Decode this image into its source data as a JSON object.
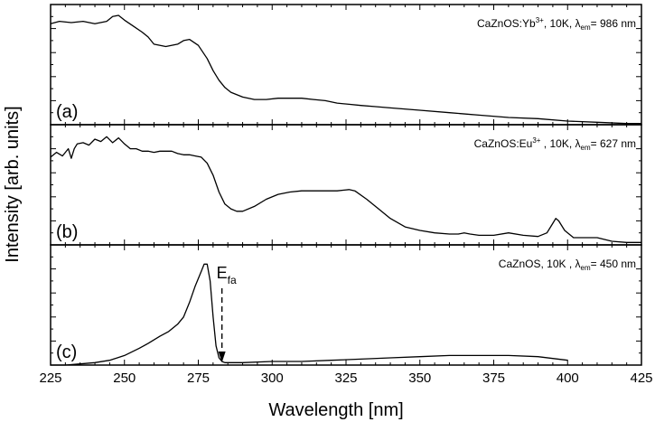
{
  "chart_data": {
    "type": "line",
    "xlabel": "Wavelength [nm]",
    "ylabel": "Intensity [arb. units]",
    "xlim": [
      225,
      425
    ],
    "xticks": [
      "225",
      "250",
      "275",
      "300",
      "325",
      "350",
      "375",
      "400",
      "425"
    ],
    "panels": [
      {
        "panel_label": "(a)",
        "legend": {
          "prefix": "CaZnOS:Yb",
          "sup": "3+",
          "mid": ", 10K, λ",
          "sub": "em",
          "suffix": "= 986 nm"
        },
        "ylim": [
          0,
          1
        ],
        "series": [
          {
            "x": [
              225,
              228,
              232,
              236,
              240,
              244,
              246,
              248,
              250,
              253,
              256,
              258,
              260,
              264,
              268,
              270,
              272,
              275,
              278,
              280,
              282,
              284,
              286,
              290,
              294,
              298,
              302,
              306,
              310,
              314,
              318,
              322,
              326,
              330,
              335,
              340,
              350,
              360,
              370,
              380,
              390,
              400,
              410,
              420,
              425
            ],
            "y": [
              0.84,
              0.86,
              0.85,
              0.86,
              0.84,
              0.86,
              0.9,
              0.91,
              0.87,
              0.82,
              0.77,
              0.73,
              0.67,
              0.65,
              0.67,
              0.7,
              0.71,
              0.66,
              0.55,
              0.45,
              0.37,
              0.31,
              0.27,
              0.23,
              0.21,
              0.21,
              0.22,
              0.22,
              0.22,
              0.21,
              0.2,
              0.18,
              0.17,
              0.16,
              0.15,
              0.14,
              0.12,
              0.1,
              0.08,
              0.06,
              0.05,
              0.03,
              0.02,
              0.01,
              0.01
            ]
          }
        ]
      },
      {
        "panel_label": "(b)",
        "legend": {
          "prefix": "CaZnOS:Eu",
          "sup": "3+",
          "mid": " , 10K, λ",
          "sub": "em",
          "suffix": "= 627 nm"
        },
        "ylim": [
          0,
          1
        ],
        "series": [
          {
            "x": [
              225,
              227,
              229,
              231,
              232,
              233,
              234,
              236,
              238,
              240,
              242,
              244,
              246,
              248,
              250,
              252,
              254,
              256,
              258,
              260,
              262,
              264,
              266,
              268,
              270,
              272,
              274,
              276,
              278,
              280,
              282,
              284,
              286,
              288,
              290,
              294,
              298,
              302,
              306,
              310,
              314,
              318,
              322,
              326,
              328,
              332,
              336,
              340,
              345,
              350,
              355,
              360,
              363,
              365,
              367,
              370,
              375,
              380,
              385,
              390,
              393,
              395,
              396,
              397,
              399,
              402,
              406,
              410,
              415,
              420,
              425
            ],
            "y": [
              0.73,
              0.77,
              0.74,
              0.8,
              0.72,
              0.8,
              0.84,
              0.85,
              0.83,
              0.88,
              0.86,
              0.9,
              0.85,
              0.89,
              0.84,
              0.8,
              0.8,
              0.78,
              0.78,
              0.77,
              0.78,
              0.78,
              0.78,
              0.76,
              0.75,
              0.75,
              0.74,
              0.73,
              0.68,
              0.58,
              0.44,
              0.34,
              0.3,
              0.28,
              0.28,
              0.32,
              0.38,
              0.42,
              0.44,
              0.45,
              0.45,
              0.45,
              0.45,
              0.46,
              0.45,
              0.38,
              0.3,
              0.22,
              0.15,
              0.12,
              0.1,
              0.09,
              0.09,
              0.1,
              0.09,
              0.08,
              0.08,
              0.1,
              0.08,
              0.07,
              0.1,
              0.18,
              0.22,
              0.2,
              0.12,
              0.06,
              0.06,
              0.06,
              0.03,
              0.02,
              0.02
            ]
          }
        ]
      },
      {
        "panel_label": "(c)",
        "legend": {
          "prefix": "CaZnOS, 10K , λ",
          "sup": "",
          "mid": "",
          "sub": "em",
          "suffix": "= 450 nm"
        },
        "ylim": [
          0,
          1
        ],
        "annotation": {
          "main": "E",
          "sub": "fa",
          "x": 283
        },
        "series": [
          {
            "x": [
              225,
              230,
              235,
              240,
              245,
              250,
              255,
              258,
              262,
              265,
              268,
              270,
              272,
              274,
              276,
              277,
              278,
              279,
              280,
              281,
              282,
              283,
              284,
              286,
              290,
              300,
              310,
              320,
              330,
              340,
              350,
              360,
              370,
              380,
              390,
              400
            ],
            "y": [
              0.0,
              0.0,
              0.01,
              0.02,
              0.04,
              0.08,
              0.14,
              0.18,
              0.24,
              0.28,
              0.34,
              0.4,
              0.52,
              0.66,
              0.78,
              0.84,
              0.84,
              0.7,
              0.4,
              0.16,
              0.06,
              0.03,
              0.02,
              0.02,
              0.02,
              0.03,
              0.03,
              0.04,
              0.05,
              0.06,
              0.07,
              0.08,
              0.08,
              0.08,
              0.07,
              0.04
            ]
          }
        ]
      }
    ]
  }
}
